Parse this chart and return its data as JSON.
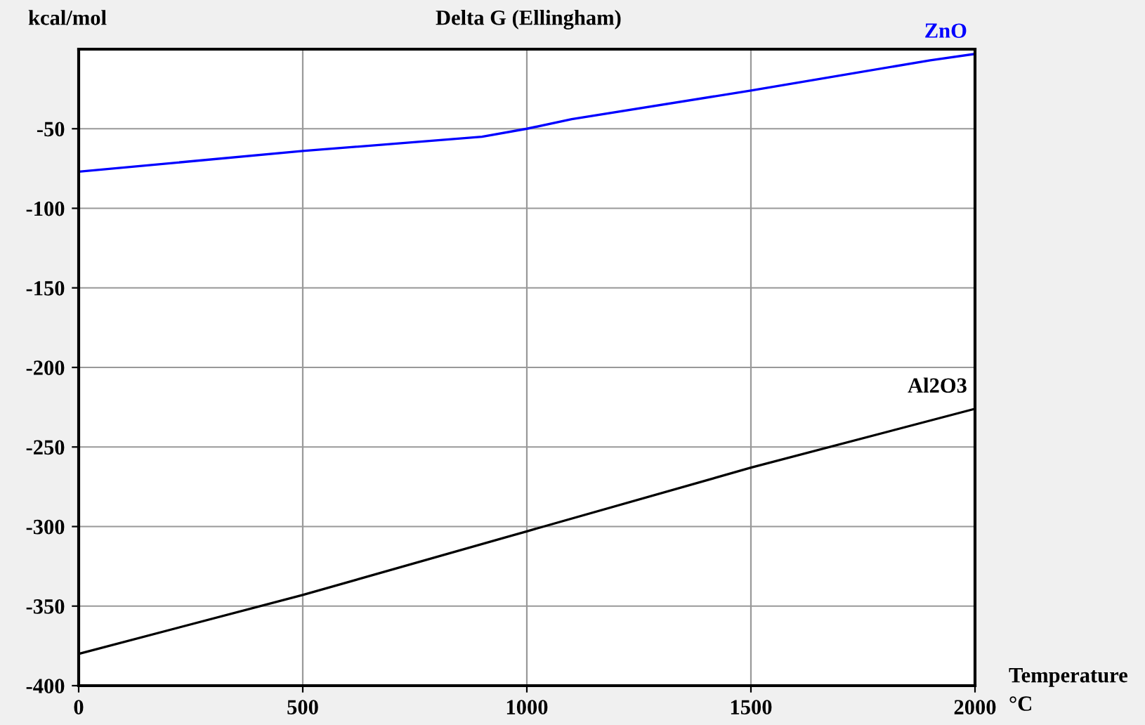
{
  "chart_data": {
    "type": "line",
    "title": "Delta G (Ellingham)",
    "ylabel": "kcal/mol",
    "xlabel": "Temperature\n°C",
    "xlim": [
      0,
      2000
    ],
    "xticks": [
      0,
      500,
      1000,
      1500,
      2000
    ],
    "ylim": [
      -400,
      0
    ],
    "yticks": [
      -50,
      -100,
      -150,
      -200,
      -250,
      -300,
      -350,
      -400
    ],
    "grid": true,
    "series": [
      {
        "name": "ZnO",
        "color": "#0000ff",
        "x": [
          0,
          500,
          900,
          1000,
          1100,
          1500,
          1900,
          2000
        ],
        "values": [
          -77,
          -64,
          -55,
          -50,
          -44,
          -26,
          -7,
          -3
        ]
      },
      {
        "name": "Al2O3",
        "color": "#000000",
        "x": [
          0,
          500,
          1000,
          1500,
          2000
        ],
        "values": [
          -380,
          -343,
          -303,
          -263,
          -226
        ]
      }
    ]
  }
}
